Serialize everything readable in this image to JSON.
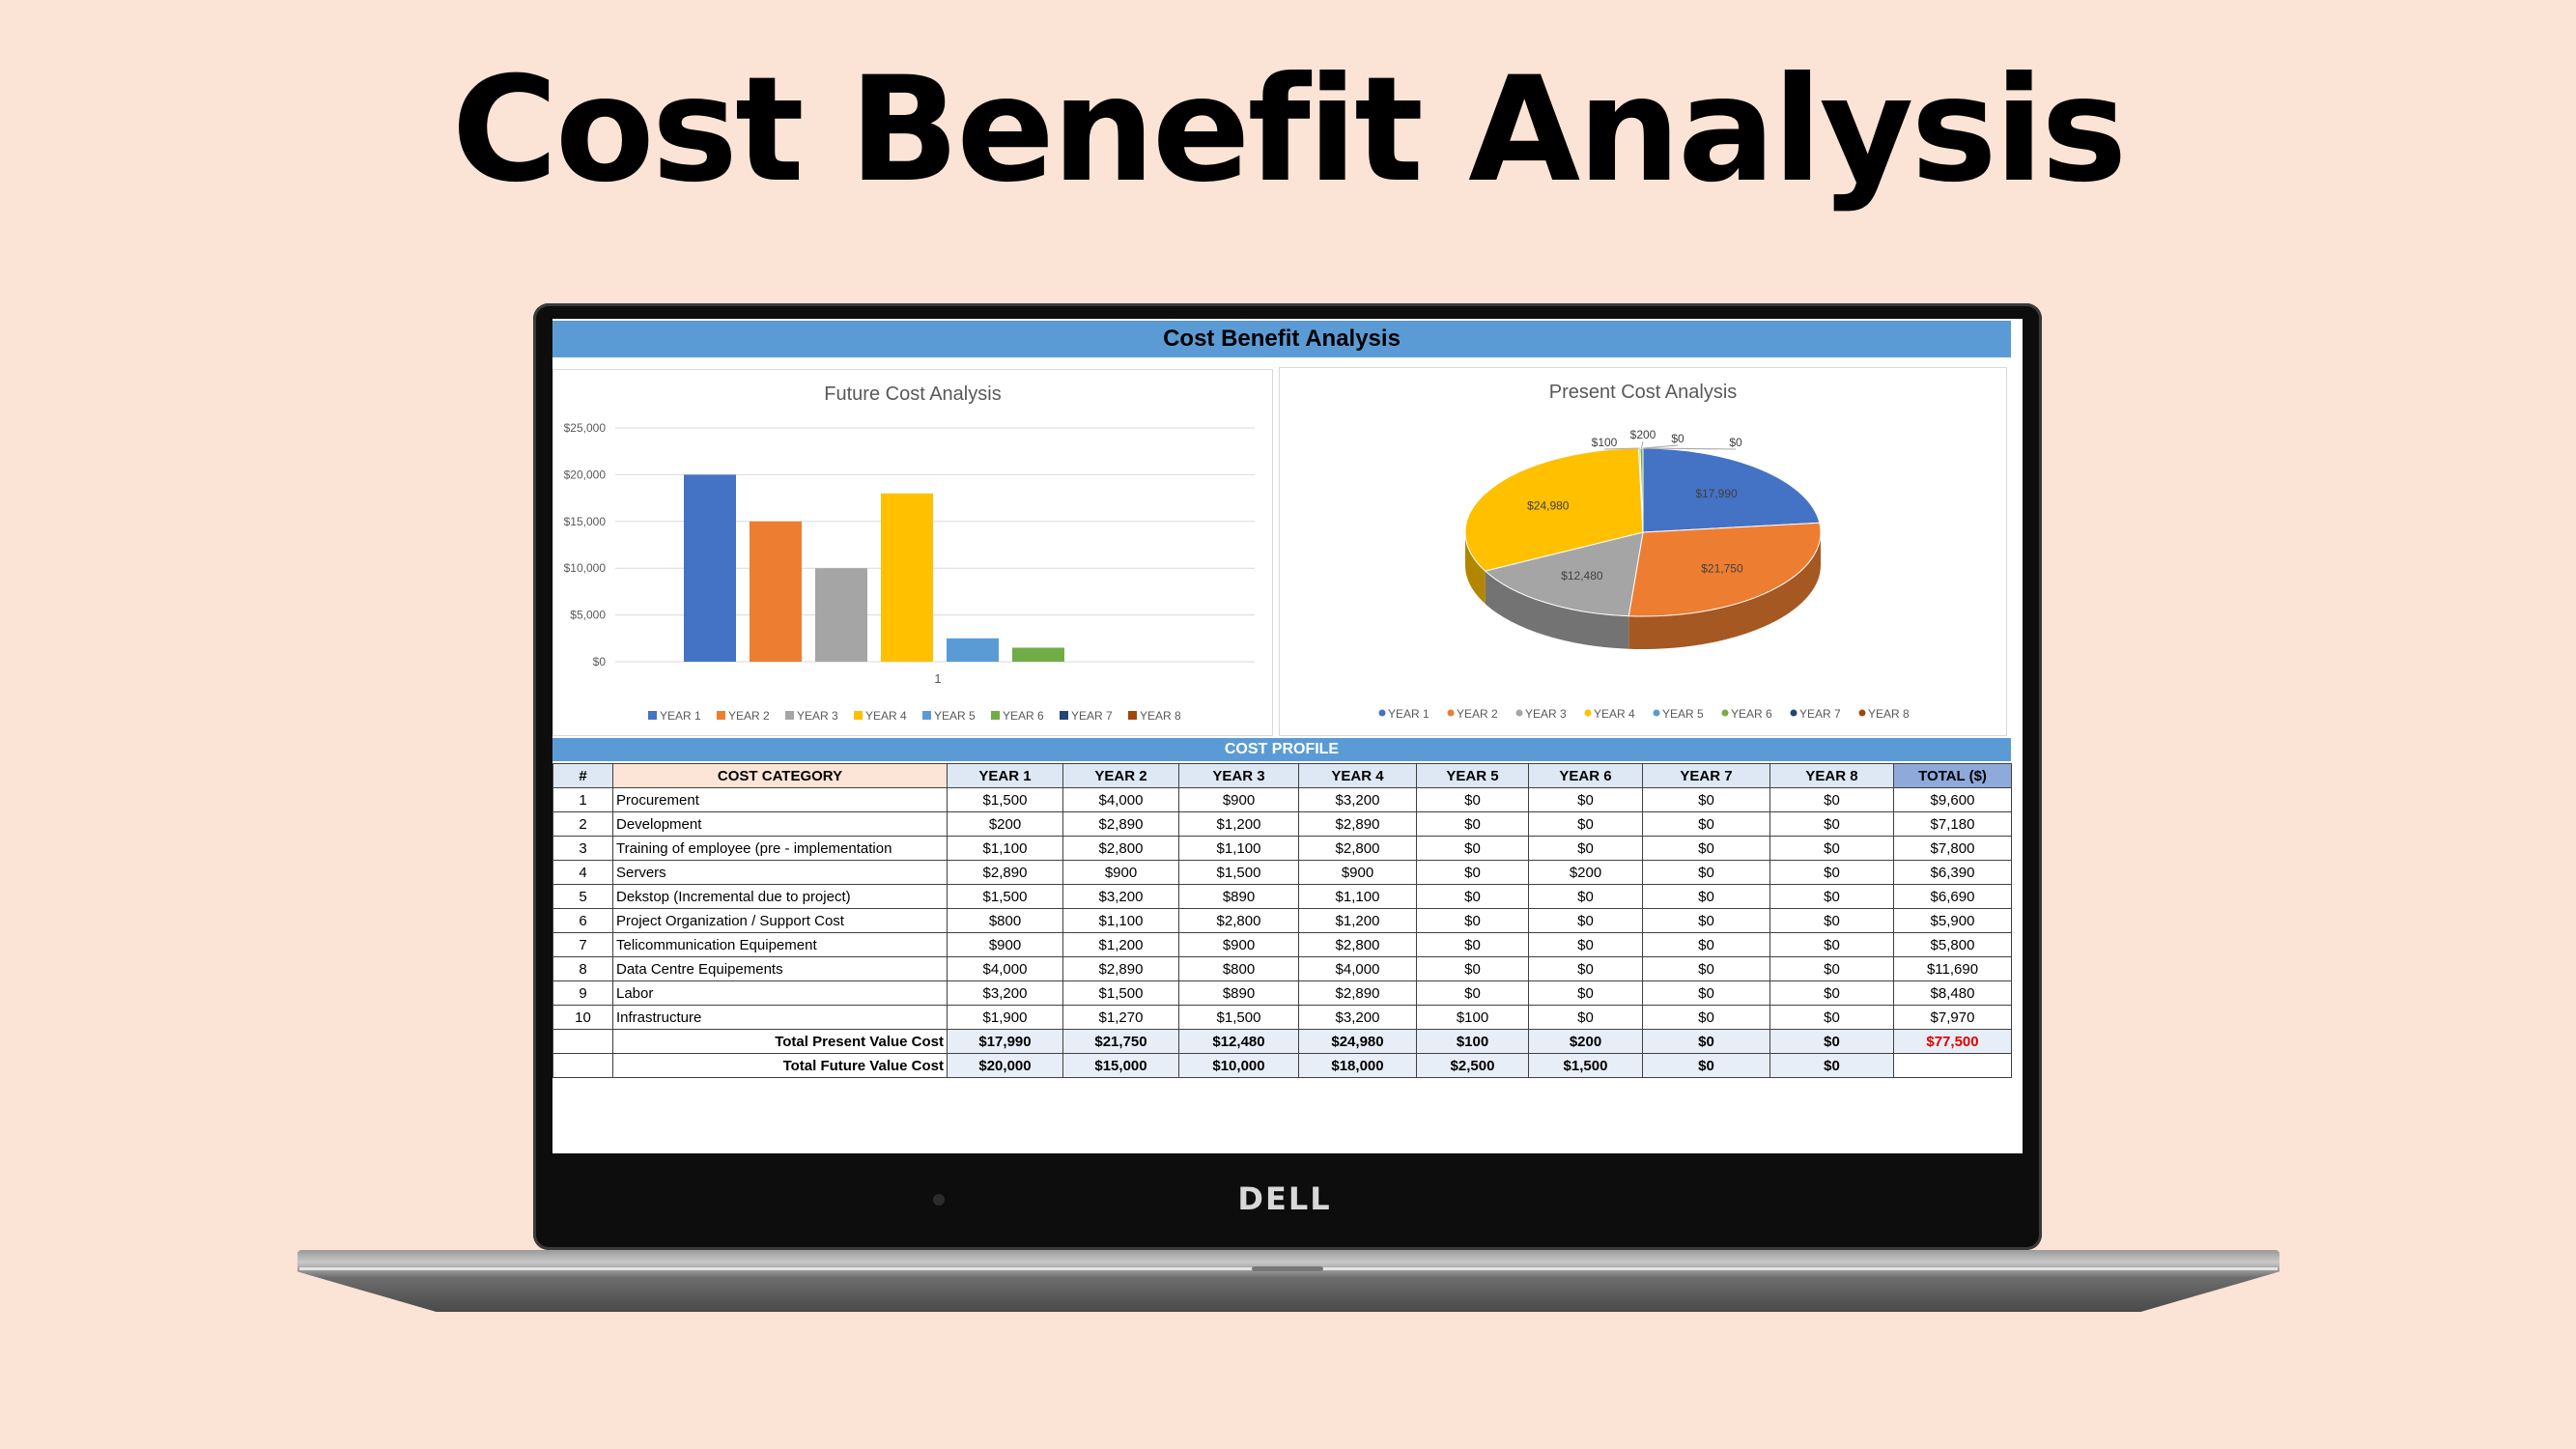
{
  "slide": {
    "title": "Cost Benefit Analysis"
  },
  "laptop": {
    "brand": "DELL"
  },
  "sheet": {
    "title": "Cost Benefit Analysis",
    "cost_profile_label": "COST PROFILE"
  },
  "colors": {
    "year1": "#4472c4",
    "year2": "#ed7d31",
    "year3": "#a5a5a5",
    "year4": "#ffc000",
    "year5": "#5b9bd5",
    "year6": "#70ad47",
    "year7": "#264478",
    "year8": "#9e480e",
    "header_bar": "#5b9bd5",
    "grand_total": "#e00000"
  },
  "chart_data": [
    {
      "type": "bar",
      "title": "Future Cost Analysis",
      "categories": [
        "1"
      ],
      "series": [
        {
          "name": "YEAR 1",
          "values": [
            20000
          ]
        },
        {
          "name": "YEAR 2",
          "values": [
            15000
          ]
        },
        {
          "name": "YEAR 3",
          "values": [
            10000
          ]
        },
        {
          "name": "YEAR 4",
          "values": [
            18000
          ]
        },
        {
          "name": "YEAR 5",
          "values": [
            2500
          ]
        },
        {
          "name": "YEAR 6",
          "values": [
            1500
          ]
        },
        {
          "name": "YEAR 7",
          "values": [
            0
          ]
        },
        {
          "name": "YEAR 8",
          "values": [
            0
          ]
        }
      ],
      "yticks": [
        "$0",
        "$5,000",
        "$10,000",
        "$15,000",
        "$20,000",
        "$25,000"
      ],
      "ylim": [
        0,
        25000
      ],
      "grid": true,
      "legend": "bottom"
    },
    {
      "type": "pie",
      "title": "Present Cost Analysis",
      "labels": [
        "YEAR 1",
        "YEAR 2",
        "YEAR 3",
        "YEAR 4",
        "YEAR 5",
        "YEAR 6",
        "YEAR 7",
        "YEAR 8"
      ],
      "values": [
        17990,
        21750,
        12480,
        24980,
        100,
        200,
        0,
        0
      ],
      "data_labels": [
        "$17,990",
        "$21,750",
        "$12,480",
        "$24,980",
        "$100",
        "$200",
        "$0",
        "$0"
      ],
      "legend": "bottom"
    }
  ],
  "table": {
    "headers": [
      "#",
      "COST CATEGORY",
      "YEAR 1",
      "YEAR 2",
      "YEAR 3",
      "YEAR 4",
      "YEAR 5",
      "YEAR 6",
      "YEAR 7",
      "YEAR 8",
      "TOTAL ($)"
    ],
    "rows": [
      [
        "1",
        "Procurement",
        "$1,500",
        "$4,000",
        "$900",
        "$3,200",
        "$0",
        "$0",
        "$0",
        "$0",
        "$9,600"
      ],
      [
        "2",
        "Development",
        "$200",
        "$2,890",
        "$1,200",
        "$2,890",
        "$0",
        "$0",
        "$0",
        "$0",
        "$7,180"
      ],
      [
        "3",
        "Training of employee (pre - implementation",
        "$1,100",
        "$2,800",
        "$1,100",
        "$2,800",
        "$0",
        "$0",
        "$0",
        "$0",
        "$7,800"
      ],
      [
        "4",
        "Servers",
        "$2,890",
        "$900",
        "$1,500",
        "$900",
        "$0",
        "$200",
        "$0",
        "$0",
        "$6,390"
      ],
      [
        "5",
        "Dekstop (Incremental due to project)",
        "$1,500",
        "$3,200",
        "$890",
        "$1,100",
        "$0",
        "$0",
        "$0",
        "$0",
        "$6,690"
      ],
      [
        "6",
        "Project Organization / Support Cost",
        "$800",
        "$1,100",
        "$2,800",
        "$1,200",
        "$0",
        "$0",
        "$0",
        "$0",
        "$5,900"
      ],
      [
        "7",
        "Telicommunication Equipement",
        "$900",
        "$1,200",
        "$900",
        "$2,800",
        "$0",
        "$0",
        "$0",
        "$0",
        "$5,800"
      ],
      [
        "8",
        "Data Centre Equipements",
        "$4,000",
        "$2,890",
        "$800",
        "$4,000",
        "$0",
        "$0",
        "$0",
        "$0",
        "$11,690"
      ],
      [
        "9",
        "Labor",
        "$3,200",
        "$1,500",
        "$890",
        "$2,890",
        "$0",
        "$0",
        "$0",
        "$0",
        "$8,480"
      ],
      [
        "10",
        "Infrastructure",
        "$1,900",
        "$1,270",
        "$1,500",
        "$3,200",
        "$100",
        "$0",
        "$0",
        "$0",
        "$7,970"
      ]
    ],
    "present_total": {
      "label": "Total Present Value Cost",
      "values": [
        "$17,990",
        "$21,750",
        "$12,480",
        "$24,980",
        "$100",
        "$200",
        "$0",
        "$0",
        "$77,500"
      ]
    },
    "future_total": {
      "label": "Total Future Value Cost",
      "values": [
        "$20,000",
        "$15,000",
        "$10,000",
        "$18,000",
        "$2,500",
        "$1,500",
        "$0",
        "$0",
        ""
      ]
    }
  }
}
